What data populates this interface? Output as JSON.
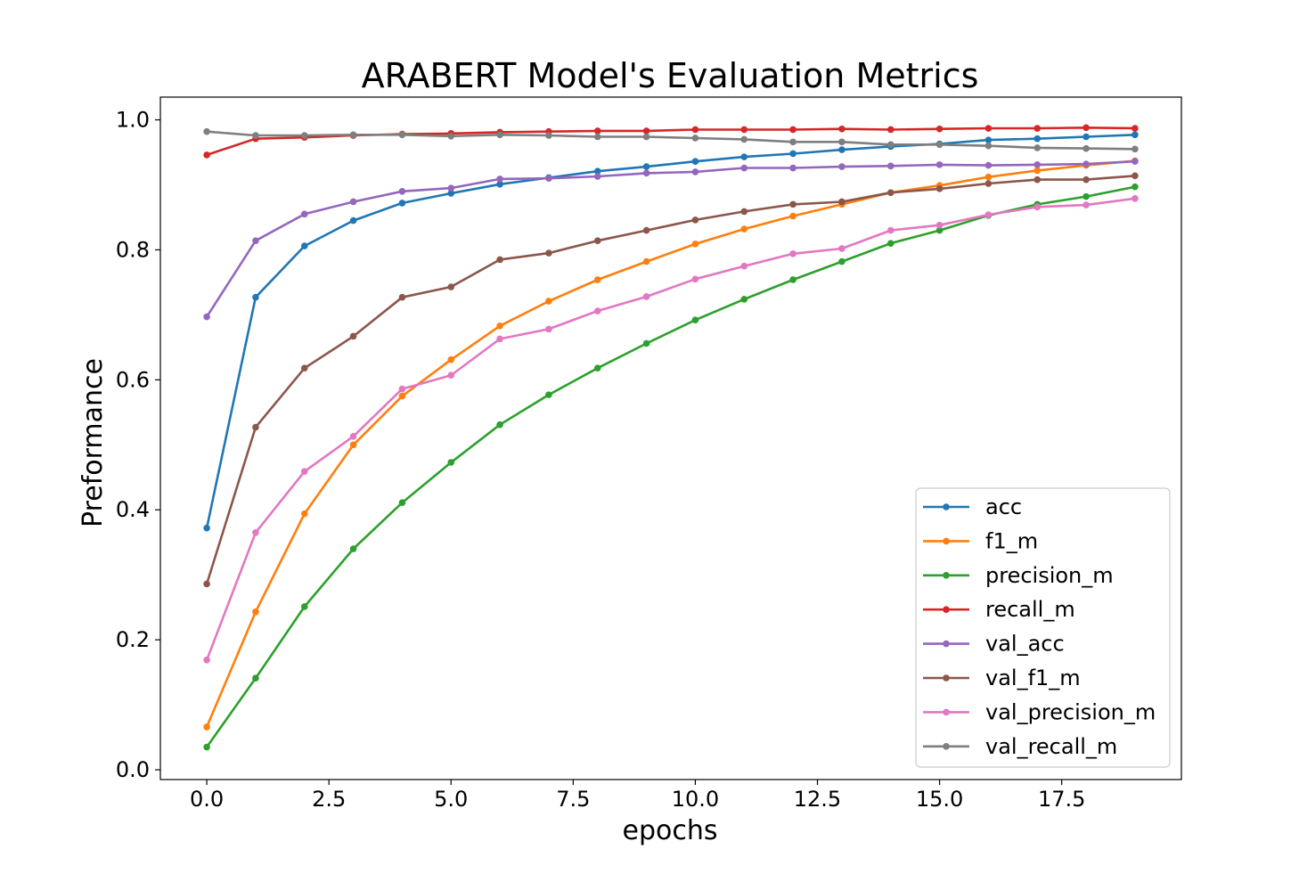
{
  "chart_data": {
    "type": "line",
    "title": "ARABERT Model's Evaluation Metrics",
    "xlabel": "epochs",
    "ylabel": "Preformance",
    "xlim": [
      -0.95,
      19.95
    ],
    "ylim": [
      -0.015,
      1.035
    ],
    "xticks": [
      0.0,
      2.5,
      5.0,
      7.5,
      10.0,
      12.5,
      15.0,
      17.5
    ],
    "xtick_labels": [
      "0.0",
      "2.5",
      "5.0",
      "7.5",
      "10.0",
      "12.5",
      "15.0",
      "17.5"
    ],
    "yticks": [
      0.0,
      0.2,
      0.4,
      0.6,
      0.8,
      1.0
    ],
    "ytick_labels": [
      "0.0",
      "0.2",
      "0.4",
      "0.6",
      "0.8",
      "1.0"
    ],
    "grid": false,
    "legend_position": "lower-right",
    "x": [
      0,
      1,
      2,
      3,
      4,
      5,
      6,
      7,
      8,
      9,
      10,
      11,
      12,
      13,
      14,
      15,
      16,
      17,
      18,
      19
    ],
    "series": [
      {
        "name": "acc",
        "color": "#1f77b4",
        "values": [
          0.372,
          0.727,
          0.806,
          0.845,
          0.872,
          0.887,
          0.901,
          0.911,
          0.921,
          0.928,
          0.936,
          0.943,
          0.948,
          0.954,
          0.959,
          0.963,
          0.969,
          0.971,
          0.974,
          0.977
        ]
      },
      {
        "name": "f1_m",
        "color": "#ff7f0e",
        "values": [
          0.066,
          0.243,
          0.394,
          0.5,
          0.575,
          0.631,
          0.683,
          0.721,
          0.754,
          0.782,
          0.809,
          0.832,
          0.852,
          0.87,
          0.888,
          0.899,
          0.912,
          0.922,
          0.93,
          0.937
        ]
      },
      {
        "name": "precision_m",
        "color": "#2ca02c",
        "values": [
          0.035,
          0.141,
          0.251,
          0.34,
          0.411,
          0.473,
          0.531,
          0.577,
          0.618,
          0.656,
          0.692,
          0.724,
          0.754,
          0.782,
          0.81,
          0.83,
          0.853,
          0.87,
          0.882,
          0.897
        ]
      },
      {
        "name": "recall_m",
        "color": "#d62728",
        "values": [
          0.946,
          0.971,
          0.973,
          0.976,
          0.978,
          0.979,
          0.981,
          0.982,
          0.983,
          0.983,
          0.985,
          0.985,
          0.985,
          0.986,
          0.985,
          0.986,
          0.987,
          0.987,
          0.988,
          0.987
        ]
      },
      {
        "name": "val_acc",
        "color": "#9467bd",
        "values": [
          0.697,
          0.814,
          0.855,
          0.874,
          0.89,
          0.895,
          0.909,
          0.91,
          0.913,
          0.918,
          0.92,
          0.926,
          0.926,
          0.928,
          0.929,
          0.931,
          0.93,
          0.931,
          0.932,
          0.936
        ]
      },
      {
        "name": "val_f1_m",
        "color": "#8c564b",
        "values": [
          0.286,
          0.527,
          0.618,
          0.667,
          0.727,
          0.743,
          0.785,
          0.795,
          0.814,
          0.83,
          0.846,
          0.859,
          0.87,
          0.874,
          0.888,
          0.894,
          0.902,
          0.908,
          0.908,
          0.914
        ]
      },
      {
        "name": "val_precision_m",
        "color": "#e377c2",
        "values": [
          0.169,
          0.365,
          0.459,
          0.513,
          0.586,
          0.607,
          0.663,
          0.678,
          0.706,
          0.728,
          0.755,
          0.775,
          0.794,
          0.802,
          0.83,
          0.838,
          0.854,
          0.866,
          0.869,
          0.879
        ]
      },
      {
        "name": "val_recall_m",
        "color": "#7f7f7f",
        "values": [
          0.982,
          0.976,
          0.976,
          0.977,
          0.977,
          0.975,
          0.977,
          0.976,
          0.974,
          0.974,
          0.972,
          0.97,
          0.966,
          0.966,
          0.962,
          0.962,
          0.96,
          0.957,
          0.956,
          0.955
        ]
      }
    ]
  }
}
